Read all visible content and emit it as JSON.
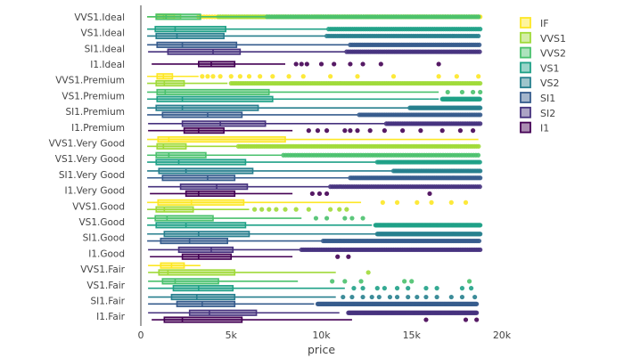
{
  "chart_data": {
    "type": "box",
    "orientation": "horizontal",
    "xlabel": "price",
    "xlim": [
      0,
      20000
    ],
    "xticks": [
      {
        "value": 0,
        "label": "0"
      },
      {
        "value": 5000,
        "label": "5k"
      },
      {
        "value": 10000,
        "label": "10k"
      },
      {
        "value": 15000,
        "label": "15k"
      },
      {
        "value": 20000,
        "label": "20k"
      }
    ],
    "grid": false,
    "legend_position": "right",
    "series_order": [
      "IF",
      "VVS1",
      "VVS2",
      "VS1",
      "VS2",
      "SI1",
      "SI2",
      "I1"
    ],
    "series_colors": {
      "IF": "#fde725",
      "VVS1": "#a0da39",
      "VVS2": "#4ac16d",
      "VS1": "#1fa187",
      "VS2": "#277f8e",
      "SI1": "#365c8d",
      "SI2": "#46327e",
      "I1": "#440154"
    },
    "categories": [
      "VVS1.Ideal",
      "VS1.Ideal",
      "SI1.Ideal",
      "I1.Ideal",
      "VVS1.Premium",
      "VS1.Premium",
      "SI1.Premium",
      "I1.Premium",
      "VVS1.Very Good",
      "VS1.Very Good",
      "SI1.Very Good",
      "I1.Very Good",
      "VVS1.Good",
      "VS1.Good",
      "SI1.Good",
      "I1.Good",
      "VVS1.Fair",
      "VS1.Fair",
      "SI1.Fair",
      "I1.Fair"
    ],
    "boxes": [
      {
        "series": "IF",
        "group": 0,
        "q1": 900,
        "median": 1350,
        "q3": 1850,
        "lower": 350,
        "upper": 3100,
        "outliers": [
          [
            3200,
            18800,
            150
          ]
        ]
      },
      {
        "series": "VVS1",
        "group": 0,
        "q1": 850,
        "median": 1250,
        "q3": 2200,
        "lower": 350,
        "upper": 4200,
        "outliers": [
          [
            4300,
            18800,
            110
          ]
        ]
      },
      {
        "series": "VVS2",
        "group": 0,
        "q1": 850,
        "median": 1400,
        "q3": 3300,
        "lower": 350,
        "upper": 6900,
        "outliers": [
          [
            7000,
            18800,
            130
          ]
        ]
      },
      {
        "series": "VS1",
        "group": 1,
        "q1": 800,
        "median": 1900,
        "q3": 4700,
        "lower": 350,
        "upper": 10300,
        "outliers": [
          [
            10400,
            18800,
            120
          ]
        ]
      },
      {
        "series": "VS2",
        "group": 1,
        "q1": 850,
        "median": 2000,
        "q3": 4600,
        "lower": 350,
        "upper": 10200,
        "outliers": [
          [
            10300,
            18800,
            120
          ]
        ]
      },
      {
        "series": "SI1",
        "group": 2,
        "q1": 900,
        "median": 2300,
        "q3": 5300,
        "lower": 350,
        "upper": 11500,
        "outliers": [
          [
            11600,
            18800,
            110
          ]
        ]
      },
      {
        "series": "SI2",
        "group": 2,
        "q1": 1500,
        "median": 4000,
        "q3": 5500,
        "lower": 400,
        "upper": 11300,
        "outliers": [
          [
            11400,
            18800,
            110
          ]
        ]
      },
      {
        "series": "I1",
        "group": 3,
        "q1": 3200,
        "median": 3900,
        "q3": 5200,
        "lower": 600,
        "upper": 8000,
        "outliers": [
          8600,
          8900,
          9200,
          10000,
          10700,
          11600,
          12300,
          13300,
          16500
        ]
      },
      {
        "series": "IF",
        "group": 4,
        "q1": 900,
        "median": 1250,
        "q3": 1750,
        "lower": 350,
        "upper": 3200,
        "outliers": [
          3400,
          3700,
          4000,
          4400,
          5000,
          5500,
          6000,
          6600,
          7300,
          8200,
          9000,
          10500,
          12000,
          14000,
          16500,
          17500,
          18700
        ]
      },
      {
        "series": "VVS1",
        "group": 4,
        "q1": 850,
        "median": 1300,
        "q3": 2400,
        "lower": 350,
        "upper": 4800,
        "outliers": [
          [
            5000,
            18800,
            100
          ]
        ]
      },
      {
        "series": "VVS2",
        "group": 5,
        "q1": 900,
        "median": 1350,
        "q3": 7100,
        "lower": 350,
        "upper": 16500,
        "outliers": [
          17000,
          17800,
          18400,
          18800
        ]
      },
      {
        "series": "VS1",
        "group": 5,
        "q1": 900,
        "median": 2300,
        "q3": 7300,
        "lower": 350,
        "upper": 16500,
        "outliers": [
          [
            16700,
            18800,
            40
          ]
        ]
      },
      {
        "series": "VS2",
        "group": 6,
        "q1": 850,
        "median": 2300,
        "q3": 6500,
        "lower": 350,
        "upper": 14800,
        "outliers": [
          [
            14900,
            18800,
            60
          ]
        ]
      },
      {
        "series": "SI1",
        "group": 6,
        "q1": 1200,
        "median": 3700,
        "q3": 5600,
        "lower": 350,
        "upper": 12000,
        "outliers": [
          [
            12100,
            18800,
            100
          ]
        ]
      },
      {
        "series": "SI2",
        "group": 7,
        "q1": 2300,
        "median": 4400,
        "q3": 6900,
        "lower": 400,
        "upper": 13500,
        "outliers": [
          [
            13600,
            18800,
            100
          ]
        ]
      },
      {
        "series": "I1",
        "group": 7,
        "q1": 2400,
        "median": 3200,
        "q3": 4600,
        "lower": 400,
        "upper": 8400,
        "outliers": [
          9300,
          9800,
          10300,
          11300,
          11600,
          12000,
          12700,
          13500,
          14500,
          15500,
          16700,
          17700,
          18400
        ]
      },
      {
        "series": "IF",
        "group": 8,
        "q1": 950,
        "median": 1550,
        "q3": 8000,
        "lower": 350,
        "upper": 18700,
        "outliers": []
      },
      {
        "series": "VVS1",
        "group": 8,
        "q1": 900,
        "median": 1250,
        "q3": 2500,
        "lower": 350,
        "upper": 5300,
        "outliers": [
          [
            5400,
            18800,
            110
          ]
        ]
      },
      {
        "series": "VVS2",
        "group": 9,
        "q1": 850,
        "median": 1550,
        "q3": 3600,
        "lower": 350,
        "upper": 7800,
        "outliers": [
          [
            7900,
            18800,
            130
          ]
        ]
      },
      {
        "series": "VS1",
        "group": 9,
        "q1": 850,
        "median": 2100,
        "q3": 5800,
        "lower": 350,
        "upper": 13000,
        "outliers": [
          [
            13100,
            18800,
            80
          ]
        ]
      },
      {
        "series": "VS2",
        "group": 10,
        "q1": 1000,
        "median": 2500,
        "q3": 6200,
        "lower": 350,
        "upper": 13900,
        "outliers": [
          [
            14000,
            18800,
            80
          ]
        ]
      },
      {
        "series": "SI1",
        "group": 10,
        "q1": 1200,
        "median": 3700,
        "q3": 5200,
        "lower": 350,
        "upper": 11500,
        "outliers": [
          [
            11600,
            18800,
            90
          ]
        ]
      },
      {
        "series": "SI2",
        "group": 11,
        "q1": 2200,
        "median": 4200,
        "q3": 5900,
        "lower": 400,
        "upper": 10400,
        "outliers": [
          [
            10500,
            18800,
            120
          ]
        ]
      },
      {
        "series": "I1",
        "group": 11,
        "q1": 2500,
        "median": 3200,
        "q3": 5200,
        "lower": 500,
        "upper": 8400,
        "outliers": [
          9500,
          9900,
          10300,
          16000
        ]
      },
      {
        "series": "IF",
        "group": 12,
        "q1": 950,
        "median": 2800,
        "q3": 5700,
        "lower": 350,
        "upper": 12200,
        "outliers": [
          13400,
          14200,
          15300,
          16100,
          17200,
          18000
        ]
      },
      {
        "series": "VVS1",
        "group": 12,
        "q1": 850,
        "median": 1300,
        "q3": 2900,
        "lower": 350,
        "upper": 6000,
        "outliers": [
          6300,
          6700,
          7100,
          7500,
          8000,
          8600,
          9300,
          10500,
          11000,
          11400
        ]
      },
      {
        "series": "VVS2",
        "group": 13,
        "q1": 800,
        "median": 1450,
        "q3": 4000,
        "lower": 350,
        "upper": 8900,
        "outliers": [
          9700,
          10300,
          11300,
          11700,
          12300
        ]
      },
      {
        "series": "VS1",
        "group": 13,
        "q1": 850,
        "median": 2500,
        "q3": 5800,
        "lower": 350,
        "upper": 12800,
        "outliers": [
          [
            13000,
            18800,
            40
          ]
        ]
      },
      {
        "series": "VS2",
        "group": 14,
        "q1": 1300,
        "median": 3200,
        "q3": 6000,
        "lower": 350,
        "upper": 13000,
        "outliers": [
          [
            13100,
            18800,
            50
          ]
        ]
      },
      {
        "series": "SI1",
        "group": 14,
        "q1": 1100,
        "median": 2700,
        "q3": 4800,
        "lower": 350,
        "upper": 10000,
        "outliers": [
          [
            10100,
            18800,
            80
          ]
        ]
      },
      {
        "series": "SI2",
        "group": 15,
        "q1": 2100,
        "median": 3900,
        "q3": 5100,
        "lower": 400,
        "upper": 8800,
        "outliers": [
          [
            8900,
            18800,
            100
          ]
        ]
      },
      {
        "series": "I1",
        "group": 15,
        "q1": 2300,
        "median": 3200,
        "q3": 5000,
        "lower": 500,
        "upper": 8400,
        "outliers": [
          10900,
          11500
        ]
      },
      {
        "series": "IF",
        "group": 16,
        "q1": 1100,
        "median": 1700,
        "q3": 2400,
        "lower": 400,
        "upper": 3300,
        "outliers": []
      },
      {
        "series": "VVS1",
        "group": 16,
        "q1": 1000,
        "median": 1500,
        "q3": 5200,
        "lower": 400,
        "upper": 10800,
        "outliers": [
          12600
        ]
      },
      {
        "series": "VVS2",
        "group": 17,
        "q1": 1200,
        "median": 1900,
        "q3": 4300,
        "lower": 400,
        "upper": 8700,
        "outliers": [
          10600,
          11300,
          12200,
          14600,
          15000,
          18200
        ]
      },
      {
        "series": "VS1",
        "group": 17,
        "q1": 1800,
        "median": 3200,
        "q3": 5100,
        "lower": 400,
        "upper": 11300,
        "outliers": [
          11800,
          12300,
          13100,
          13500,
          14200,
          14800,
          15800,
          16400,
          17800,
          18300
        ]
      },
      {
        "series": "VS2",
        "group": 18,
        "q1": 1700,
        "median": 3100,
        "q3": 5200,
        "lower": 400,
        "upper": 10800,
        "outliers": [
          11200,
          11700,
          12300,
          12800,
          13200,
          13800,
          14200,
          14800,
          15300,
          15800,
          16400,
          17200,
          17800,
          18500
        ]
      },
      {
        "series": "SI1",
        "group": 18,
        "q1": 2000,
        "median": 3400,
        "q3": 5200,
        "lower": 400,
        "upper": 9600,
        "outliers": [
          [
            9800,
            18600,
            40
          ]
        ]
      },
      {
        "series": "SI2",
        "group": 19,
        "q1": 2700,
        "median": 3800,
        "q3": 6400,
        "lower": 400,
        "upper": 11000,
        "outliers": [
          [
            11500,
            18600,
            50
          ]
        ]
      },
      {
        "series": "I1",
        "group": 19,
        "q1": 1300,
        "median": 2300,
        "q3": 5600,
        "lower": 600,
        "upper": 11700,
        "outliers": [
          15800,
          18000,
          18600
        ]
      }
    ]
  }
}
